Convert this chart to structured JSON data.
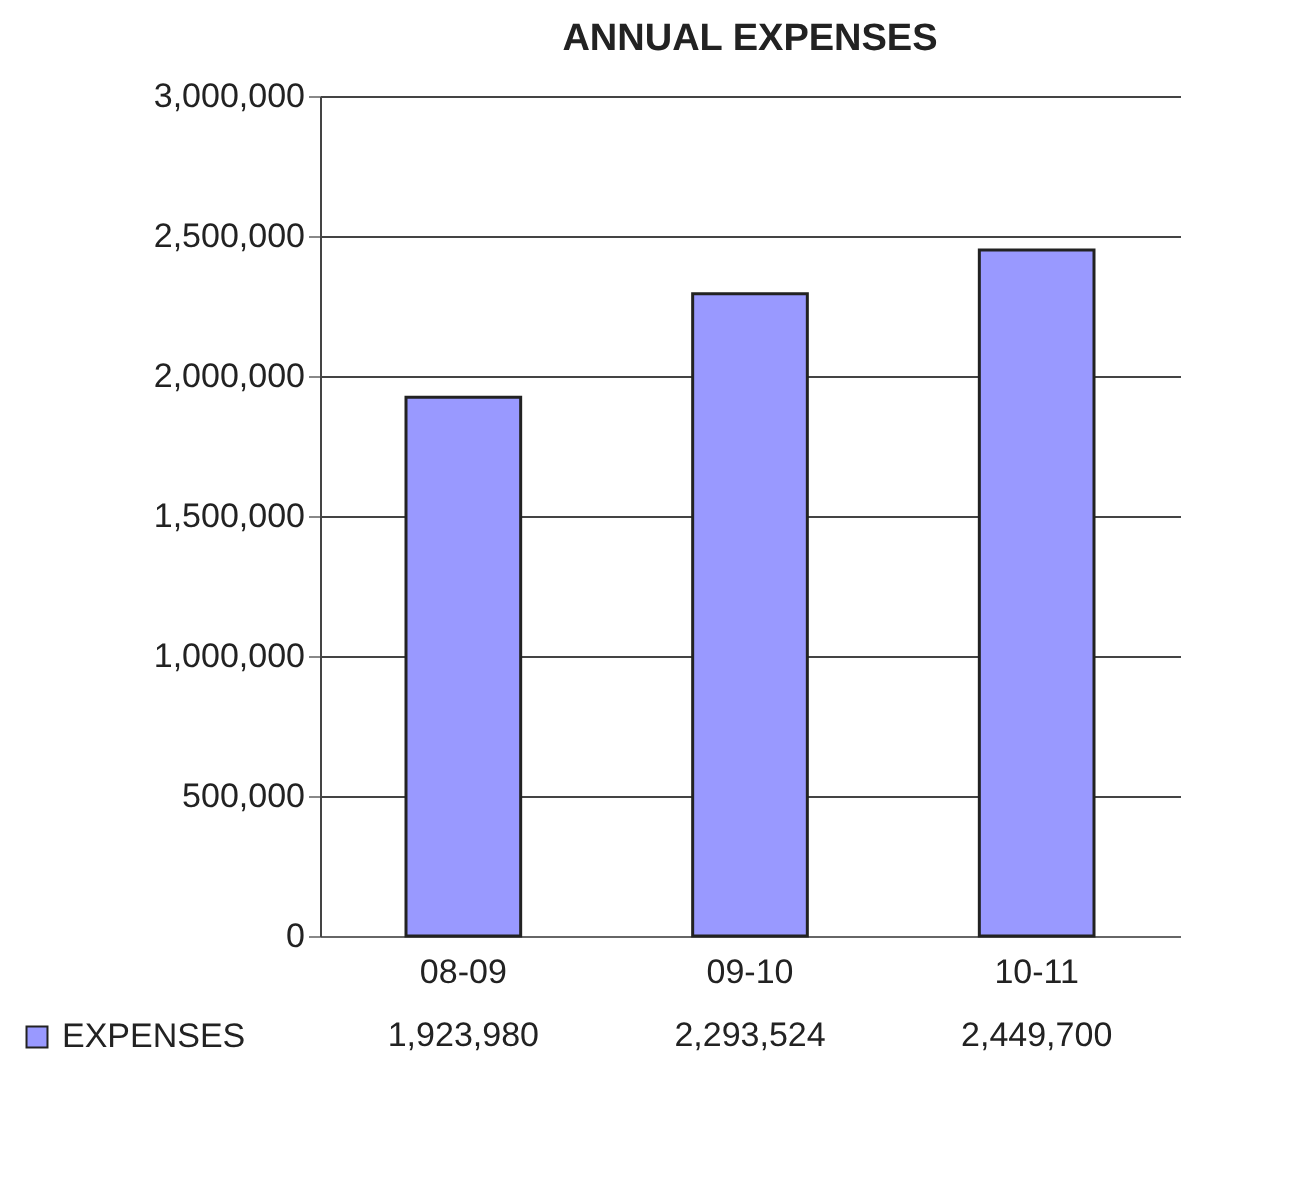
{
  "chart_data": {
    "type": "bar",
    "title": "ANNUAL EXPENSES",
    "categories": [
      "08-09",
      "09-10",
      "10-11"
    ],
    "series": [
      {
        "name": "EXPENSES",
        "color": "#9999ff",
        "values": [
          1923980,
          2293524,
          2449700
        ],
        "value_labels": [
          "1,923,980",
          "2,293,524",
          "2,449,700"
        ]
      }
    ],
    "ylim": [
      0,
      3000000
    ],
    "yticks": [
      0,
      {
        "value": 500000,
        "label": "500,000"
      },
      {
        "value": 1000000,
        "label": "1,000,000"
      },
      {
        "value": 1500000,
        "label": "1,500,000"
      },
      {
        "value": 2000000,
        "label": "2,000,000"
      },
      {
        "value": 2500000,
        "label": "2,500,000"
      },
      {
        "value": 3000000,
        "label": "3,000,000"
      }
    ],
    "grid": "y",
    "legend": "bottom left"
  }
}
